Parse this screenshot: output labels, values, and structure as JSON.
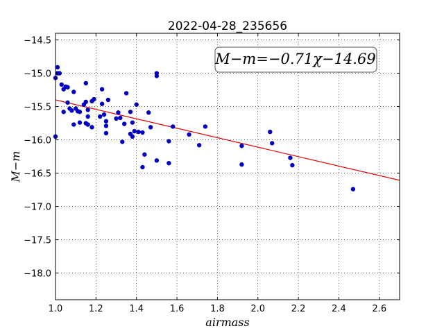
{
  "chart_data": {
    "type": "scatter",
    "title": "2022-04-28_235656",
    "xlabel": "airmass",
    "ylabel": "M−m",
    "xlim": [
      1.0,
      2.7
    ],
    "ylim": [
      -18.4,
      -14.4
    ],
    "y_inverted": true,
    "grid": true,
    "x_ticks": [
      1.0,
      1.2,
      1.4,
      1.6,
      1.8,
      2.0,
      2.2,
      2.4,
      2.6
    ],
    "x_tick_labels": [
      "1.0",
      "1.2",
      "1.4",
      "1.6",
      "1.8",
      "2.0",
      "2.2",
      "2.4",
      "2.6"
    ],
    "y_ticks": [
      -14.5,
      -15.0,
      -15.5,
      -16.0,
      -16.5,
      -17.0,
      -17.5,
      -18.0
    ],
    "y_tick_labels": [
      "−14.5",
      "−15.0",
      "−15.5",
      "−16.0",
      "−16.5",
      "−17.0",
      "−17.5",
      "−18.0"
    ],
    "annotation": "M−m=−0.71χ−14.69",
    "fit": {
      "slope": -0.71,
      "intercept": -14.69,
      "color": "#e00000"
    },
    "point_color": "#0000c0",
    "points": [
      [
        1.0,
        -15.07
      ],
      [
        1.0,
        -15.95
      ],
      [
        1.01,
        -14.91
      ],
      [
        1.01,
        -15.0
      ],
      [
        1.02,
        -15.0
      ],
      [
        1.03,
        -15.17
      ],
      [
        1.04,
        -15.24
      ],
      [
        1.05,
        -15.2
      ],
      [
        1.04,
        -15.58
      ],
      [
        1.06,
        -15.21
      ],
      [
        1.06,
        -15.44
      ],
      [
        1.07,
        -15.53
      ],
      [
        1.08,
        -15.56
      ],
      [
        1.09,
        -15.77
      ],
      [
        1.09,
        -15.28
      ],
      [
        1.1,
        -15.53
      ],
      [
        1.11,
        -15.57
      ],
      [
        1.12,
        -15.58
      ],
      [
        1.12,
        -15.74
      ],
      [
        1.14,
        -15.47
      ],
      [
        1.15,
        -15.15
      ],
      [
        1.15,
        -15.75
      ],
      [
        1.15,
        -15.43
      ],
      [
        1.16,
        -15.55
      ],
      [
        1.16,
        -15.65
      ],
      [
        1.16,
        -15.77
      ],
      [
        1.18,
        -15.42
      ],
      [
        1.18,
        -15.81
      ],
      [
        1.19,
        -15.39
      ],
      [
        1.22,
        -15.65
      ],
      [
        1.23,
        -15.24
      ],
      [
        1.23,
        -15.46
      ],
      [
        1.24,
        -15.62
      ],
      [
        1.25,
        -15.72
      ],
      [
        1.25,
        -15.79
      ],
      [
        1.25,
        -15.9
      ],
      [
        1.26,
        -15.4
      ],
      [
        1.3,
        -15.68
      ],
      [
        1.31,
        -15.59
      ],
      [
        1.32,
        -15.67
      ],
      [
        1.33,
        -16.03
      ],
      [
        1.34,
        -15.76
      ],
      [
        1.35,
        -15.3
      ],
      [
        1.37,
        -15.58
      ],
      [
        1.37,
        -15.91
      ],
      [
        1.38,
        -15.74
      ],
      [
        1.38,
        -15.95
      ],
      [
        1.39,
        -15.87
      ],
      [
        1.4,
        -15.47
      ],
      [
        1.41,
        -15.88
      ],
      [
        1.43,
        -15.89
      ],
      [
        1.43,
        -16.41
      ],
      [
        1.44,
        -16.22
      ],
      [
        1.46,
        -15.59
      ],
      [
        1.47,
        -15.81
      ],
      [
        1.5,
        -15.0
      ],
      [
        1.5,
        -15.04
      ],
      [
        1.5,
        -16.31
      ],
      [
        1.56,
        -16.02
      ],
      [
        1.56,
        -16.35
      ],
      [
        1.58,
        -15.8
      ],
      [
        1.66,
        -15.92
      ],
      [
        1.71,
        -16.08
      ],
      [
        1.74,
        -15.8
      ],
      [
        1.92,
        -16.09
      ],
      [
        1.92,
        -16.37
      ],
      [
        2.06,
        -15.88
      ],
      [
        2.07,
        -16.05
      ],
      [
        2.16,
        -16.27
      ],
      [
        2.17,
        -16.38
      ],
      [
        2.47,
        -16.74
      ]
    ]
  }
}
